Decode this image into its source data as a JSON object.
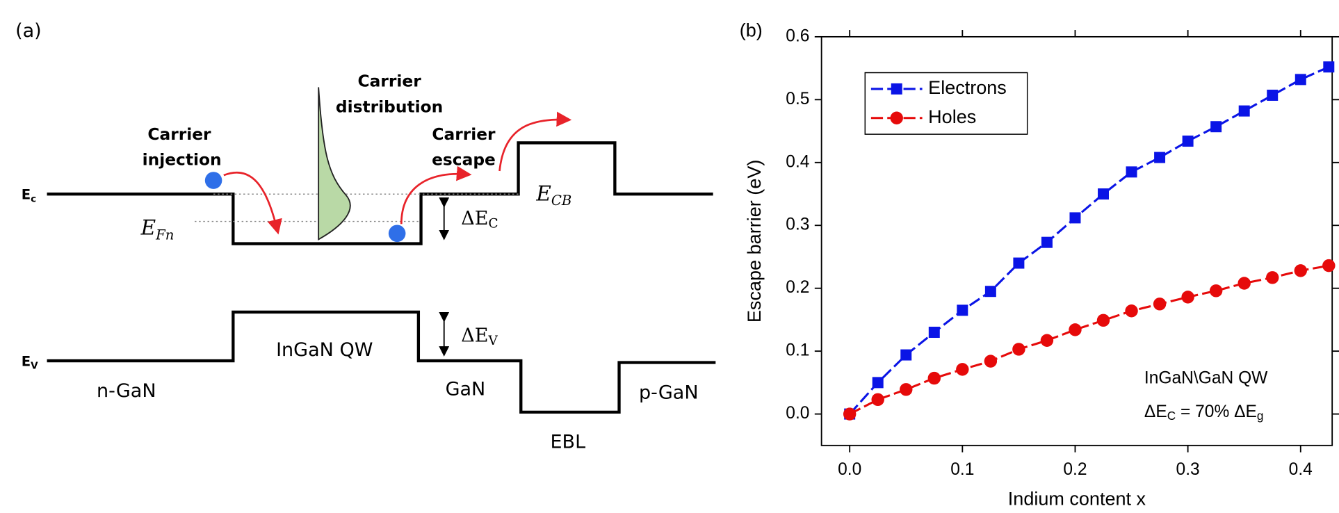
{
  "diagram": {
    "panel_label": "(a)",
    "carrier_distribution": [
      "Carrier",
      "distribution"
    ],
    "carrier_injection": [
      "Carrier",
      "injection"
    ],
    "carrier_escape": [
      "Carrier",
      "escape"
    ],
    "ec_label": {
      "text": "E",
      "sub": "c"
    },
    "ev_label": {
      "text": "E",
      "sub": "V"
    },
    "efn_label": {
      "text": "E",
      "sub": "Fn"
    },
    "ecb_label": {
      "text": "E",
      "sub": "CB"
    },
    "delta_ec": {
      "text": "ΔE",
      "sub": "C"
    },
    "delta_ev": {
      "text": "ΔE",
      "sub": "V"
    },
    "regions": [
      "n-GaN",
      "InGaN QW",
      "GaN",
      "EBL",
      "p-GaN"
    ]
  },
  "chart_data": {
    "type": "line",
    "panel_label": "(b)",
    "x_label": "Indium content x",
    "y_label": "Escape barrier (eV)",
    "annotation": [
      "InGaN\\GaN QW",
      {
        "parts": [
          "ΔE",
          "C",
          " = 70% ΔE",
          "g"
        ]
      }
    ],
    "x": [
      0,
      0.025,
      0.05,
      0.075,
      0.1,
      0.125,
      0.15,
      0.175,
      0.2,
      0.225,
      0.25,
      0.275,
      0.3,
      0.325,
      0.35,
      0.375,
      0.4,
      0.425
    ],
    "series": [
      {
        "name": "Electrons",
        "color": "#0a14e6",
        "marker": "square",
        "values": [
          0,
          0.05,
          0.094,
          0.13,
          0.165,
          0.195,
          0.24,
          0.273,
          0.312,
          0.35,
          0.385,
          0.408,
          0.434,
          0.457,
          0.482,
          0.507,
          0.532,
          0.552
        ]
      },
      {
        "name": "Holes",
        "color": "#e60a0a",
        "marker": "circle",
        "values": [
          0,
          0.023,
          0.039,
          0.057,
          0.071,
          0.084,
          0.103,
          0.117,
          0.134,
          0.149,
          0.164,
          0.175,
          0.186,
          0.196,
          0.208,
          0.217,
          0.228,
          0.236
        ]
      }
    ],
    "xlim": [
      -0.025,
      0.428
    ],
    "ylim": [
      -0.05,
      0.6
    ],
    "xticks": [
      {
        "value": 0,
        "label": "0.0"
      },
      0.1,
      0.2,
      0.3,
      0.4
    ],
    "yticks": [
      {
        "value": 0,
        "label": "0.0"
      },
      0.1,
      0.2,
      0.3,
      0.4,
      0.5,
      0.6
    ],
    "legend": "upper left",
    "grid": false
  }
}
